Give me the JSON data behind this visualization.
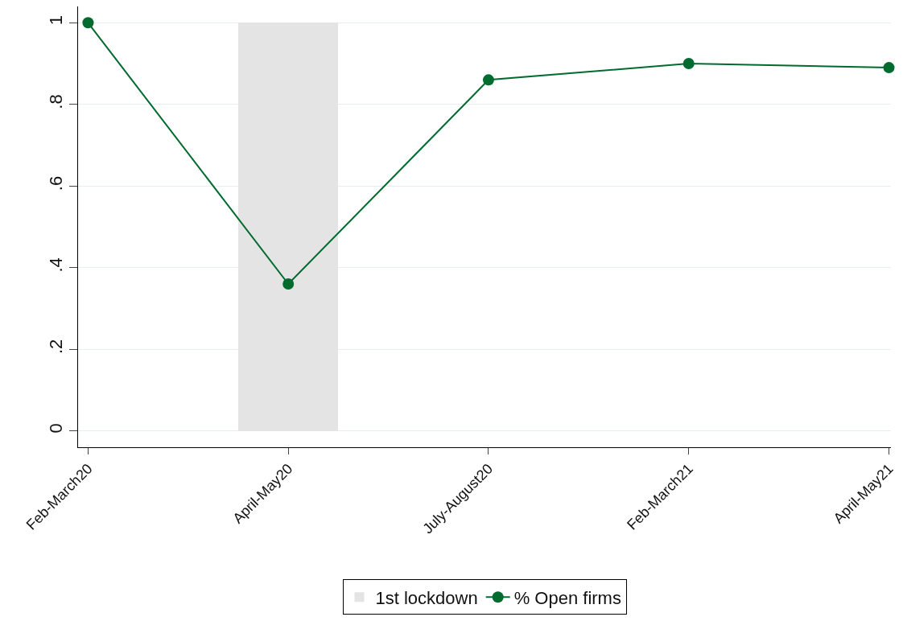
{
  "chart_data": {
    "type": "line",
    "categories": [
      "Feb-March20",
      "April-May20",
      "July-August20",
      "Feb-March21",
      "April-May21"
    ],
    "series": [
      {
        "type": "bar",
        "name": "1st lockdown",
        "color": "#e4e4e4",
        "values": [
          null,
          1,
          null,
          null,
          null
        ]
      },
      {
        "name": "% Open firms",
        "color": "#006b2f",
        "values": [
          1,
          0.36,
          0.86,
          0.9,
          0.89
        ]
      }
    ],
    "ylim": [
      -0.04,
      1.04
    ],
    "yticks": [
      0,
      {
        "value": 0.2,
        "label": ".2"
      },
      {
        "value": 0.4,
        "label": ".4"
      },
      {
        "value": 0.6,
        "label": ".6"
      },
      {
        "value": 0.8,
        "label": ".8"
      },
      1
    ],
    "grid": "y",
    "legend": "bottom",
    "marker": "circle",
    "line_style": "solid"
  }
}
